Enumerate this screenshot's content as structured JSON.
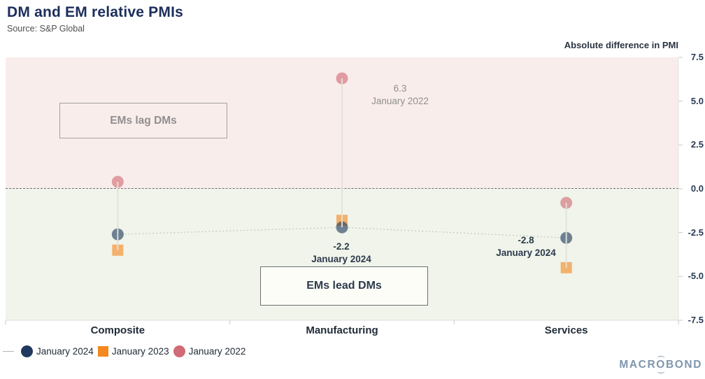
{
  "header": {
    "title": "DM and EM relative PMIs",
    "source": "Source: S&P Global"
  },
  "chart_data": {
    "type": "scatter",
    "title": "DM and EM relative PMIs",
    "categories": [
      "Composite",
      "Manufacturing",
      "Services"
    ],
    "series": [
      {
        "name": "January 2024",
        "marker": "circle",
        "color": "#1f3a5e",
        "values": [
          -2.6,
          -2.2,
          -2.8
        ],
        "connector": "dashed"
      },
      {
        "name": "January 2023",
        "marker": "square",
        "color": "#f5871f",
        "values": [
          -3.5,
          -1.8,
          -4.5
        ]
      },
      {
        "name": "January 2022",
        "marker": "circle",
        "color": "#d06a74",
        "values": [
          0.4,
          6.3,
          -0.8
        ]
      }
    ],
    "xlabel": "",
    "ylabel": "Absolute difference in PMI",
    "ylim": [
      -7.5,
      7.5
    ],
    "ytick_labels": [
      "7.5",
      "5.0",
      "2.5",
      "0.0",
      "-2.5",
      "-5.0",
      "-7.5"
    ],
    "zero_line": true,
    "grid": false,
    "legend_position": "bottom-left",
    "regions": [
      {
        "label": "EMs lag DMs",
        "range": [
          0,
          7.5
        ],
        "color": "#f9edeb"
      },
      {
        "label": "EMs lead DMs",
        "range": [
          -7.5,
          0
        ],
        "color": "#f0f4ea"
      }
    ],
    "annotations": [
      {
        "value": "6.3",
        "label": "January 2022",
        "category": "Manufacturing",
        "tone": "muted"
      },
      {
        "value": "-2.2",
        "label": "January 2024",
        "category": "Manufacturing",
        "tone": "dark"
      },
      {
        "value": "-2.8",
        "label": "January 2024",
        "category": "Services",
        "tone": "dark"
      }
    ]
  },
  "logo": {
    "left": "MACR",
    "o": "O",
    "right": "BOND"
  }
}
